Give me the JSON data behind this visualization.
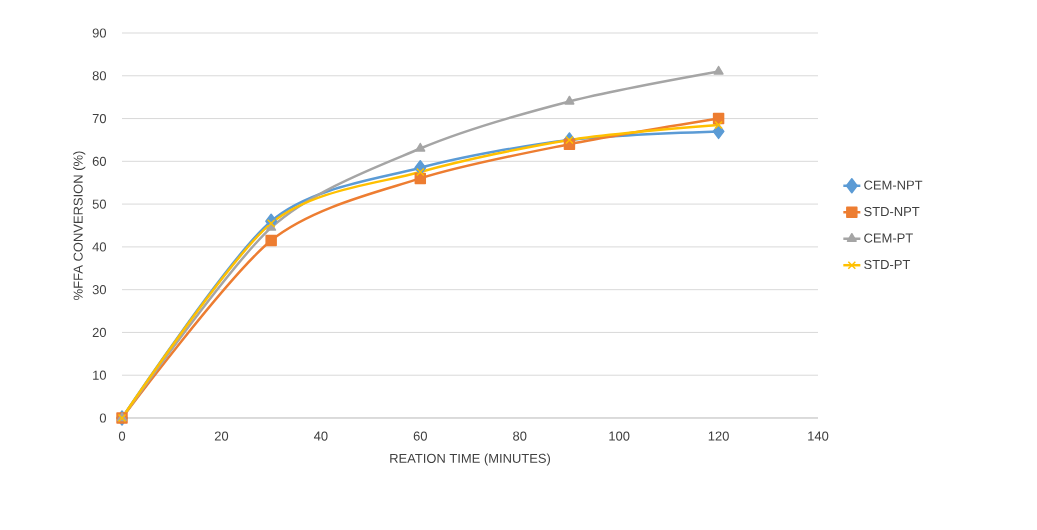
{
  "chart_data": {
    "type": "line",
    "xlabel": "REATION TIME (MINUTES)",
    "ylabel": "%FFA CONVERSION (%)",
    "x": [
      0,
      30,
      60,
      90,
      120
    ],
    "series": [
      {
        "name": "CEM-NPT",
        "color": "#5b9bd5",
        "marker": "diamond",
        "values": [
          0,
          46,
          58.5,
          65,
          67
        ]
      },
      {
        "name": "STD-NPT",
        "color": "#ed7d31",
        "marker": "square",
        "values": [
          0,
          41.5,
          56,
          64,
          70
        ]
      },
      {
        "name": "CEM-PT",
        "color": "#a5a5a5",
        "marker": "triangle",
        "values": [
          0,
          44.5,
          63,
          74,
          81
        ]
      },
      {
        "name": "STD-PT",
        "color": "#ffc000",
        "marker": "cross",
        "values": [
          0,
          45.5,
          57.5,
          65,
          68.5
        ]
      }
    ],
    "xlim": [
      0,
      140
    ],
    "xticks": [
      0,
      20,
      40,
      60,
      80,
      100,
      120,
      140
    ],
    "ylim": [
      0,
      90
    ],
    "yticks": [
      0,
      10,
      20,
      30,
      40,
      50,
      60,
      70,
      80,
      90
    ],
    "grid": "y",
    "legend": "right",
    "line_style": "solid"
  }
}
